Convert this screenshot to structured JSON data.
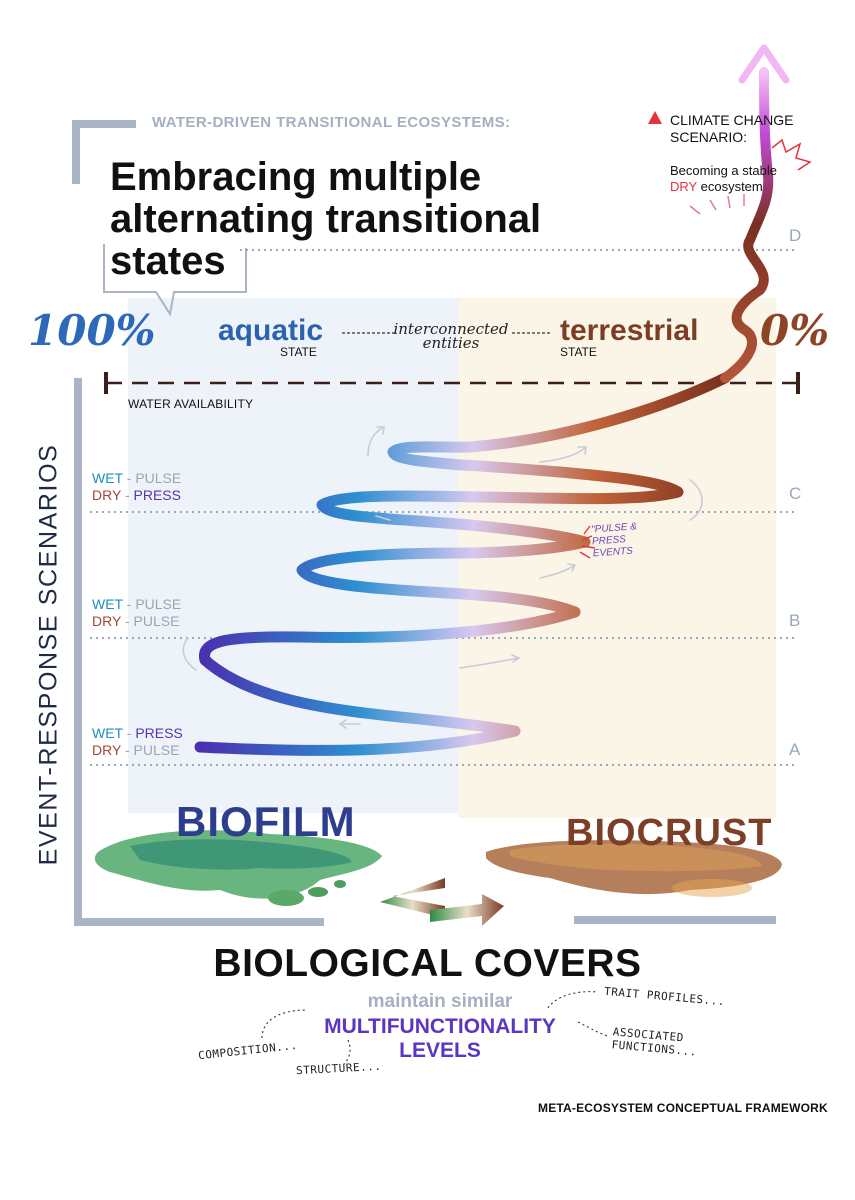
{
  "header": {
    "supertitle": "WATER-DRIVEN TRANSITIONAL ECOSYSTEMS:",
    "title": "Embracing multiple alternating transitional states"
  },
  "climate": {
    "warning_label": "CLIMATE CHANGE SCENARIO:",
    "subtitle_prefix": "Becoming a stable",
    "subtitle_dry": "DRY",
    "subtitle_suffix": "ecosystem"
  },
  "gradient": {
    "left_percent": "100%",
    "right_percent": "0%",
    "aquatic": "aquatic",
    "aquatic_state": "STATE",
    "connector": "interconnected entities",
    "terrestrial": "terrestrial",
    "terrestrial_state": "STATE",
    "axis_label": "WATER AVAILABILITY"
  },
  "vertical_axis_label": "EVENT-RESPONSE SCENARIOS",
  "scenarios": {
    "c": {
      "wet": "WET",
      "wet_type": "PULSE",
      "dry": "DRY",
      "dry_type": "PRESS",
      "letter": "C"
    },
    "b": {
      "wet": "WET",
      "wet_type": "PULSE",
      "dry": "DRY",
      "dry_type": "PULSE",
      "letter": "B"
    },
    "a": {
      "wet": "WET",
      "wet_type": "PRESS",
      "dry": "DRY",
      "dry_type": "PULSE",
      "letter": "A"
    },
    "d_letter": "D",
    "separator": "-"
  },
  "pulse_press_note": "\"PULSE & PRESS EVENTS",
  "covers": {
    "biofilm": "BIOFILM",
    "biocrust": "BIOCRUST",
    "title": "BIOLOGICAL COVERS",
    "maintain": "maintain similar",
    "multi_line1": "MULTIFUNCTIONALITY",
    "multi_line2": "LEVELS"
  },
  "notes": {
    "composition": "COMPOSITION...",
    "structure": "STRUCTURE...",
    "trait": "TRAIT PROFILES...",
    "associated_1": "ASSOCIATED",
    "associated_2": "FUNCTIONS..."
  },
  "footer": "META-ECOSYSTEM CONCEPTUAL FRAMEWORK",
  "colors": {
    "aquatic": "#2c63ae",
    "terrestrial": "#7b3e24",
    "wet": "#1b8fbf",
    "dry": "#a04a35",
    "press": "#5533b0",
    "climate_dry": "#e2343f",
    "frame": "#a9b4c5"
  }
}
